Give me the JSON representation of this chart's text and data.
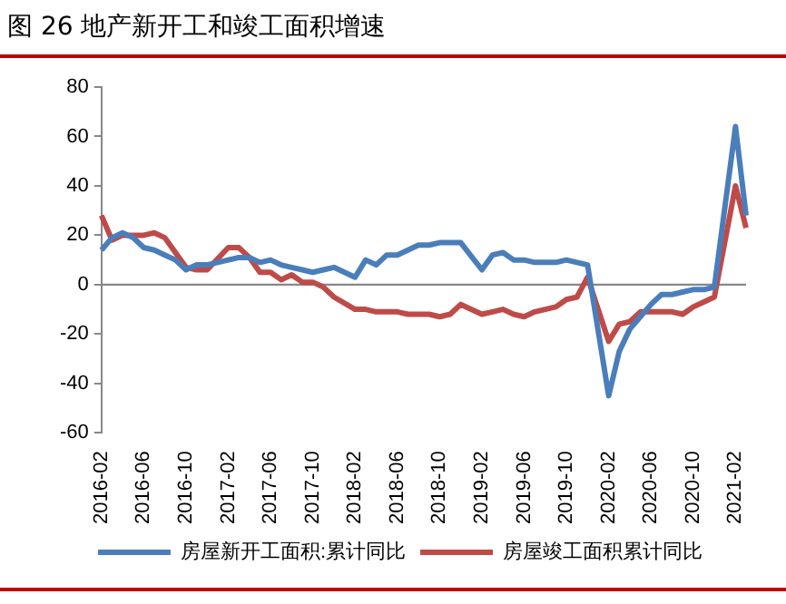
{
  "chart_data": {
    "type": "line",
    "title": "图 26 地产新开工和竣工面积增速",
    "categories": [
      "2016-02",
      null,
      null,
      null,
      "2016-06",
      null,
      null,
      null,
      "2016-10",
      null,
      null,
      null,
      "2017-02",
      null,
      null,
      null,
      "2017-06",
      null,
      null,
      null,
      "2017-10",
      null,
      null,
      null,
      "2018-02",
      null,
      null,
      null,
      "2018-06",
      null,
      null,
      null,
      "2018-10",
      null,
      null,
      null,
      "2019-02",
      null,
      null,
      null,
      "2019-06",
      null,
      null,
      null,
      "2019-10",
      null,
      null,
      null,
      "2020-02",
      null,
      null,
      null,
      "2020-06",
      null,
      null,
      null,
      "2020-10",
      null,
      null,
      null,
      "2021-02",
      null
    ],
    "series": [
      {
        "name": "房屋新开工面积:累计同比",
        "color": "#4a7ebb",
        "values": [
          14,
          19,
          21,
          19,
          15,
          14,
          12,
          10,
          6,
          8,
          8,
          null,
          10,
          11,
          11,
          9,
          10,
          8,
          7,
          6,
          5,
          6,
          7,
          null,
          3,
          10,
          8,
          12,
          12,
          14,
          16,
          16,
          17,
          17,
          17,
          null,
          6,
          12,
          13,
          10,
          10,
          9,
          9,
          9,
          10,
          9,
          8,
          null,
          -45,
          -27,
          -18,
          -13,
          -8,
          -4,
          -4,
          -3,
          -2,
          -2,
          -1,
          null,
          64,
          28
        ]
      },
      {
        "name": "房屋竣工面积累计同比",
        "color": "#be4b48",
        "values": [
          28,
          18,
          20,
          20,
          20,
          21,
          19,
          13,
          7,
          6,
          6,
          null,
          15,
          15,
          11,
          5,
          5,
          2,
          4,
          1,
          1,
          -1,
          -5,
          null,
          -10,
          -10,
          -11,
          -11,
          -11,
          -12,
          -12,
          -12,
          -13,
          -12,
          -8,
          null,
          -12,
          -11,
          -10,
          -12,
          -13,
          -11,
          -10,
          -9,
          -6,
          -5,
          3,
          null,
          -23,
          -16,
          -15,
          -11,
          -11,
          -11,
          -11,
          -12,
          -9,
          -7,
          -5,
          null,
          40,
          23
        ]
      }
    ],
    "ylim": [
      -60,
      80
    ],
    "yticks": [
      -60,
      -40,
      -20,
      0,
      20,
      40,
      60,
      80
    ],
    "ref_lines": [
      {
        "axis": "y",
        "value": 0,
        "color": "#888888"
      }
    ],
    "grid": false,
    "legend": "bottom",
    "marker": "none",
    "line_style": "solid"
  }
}
